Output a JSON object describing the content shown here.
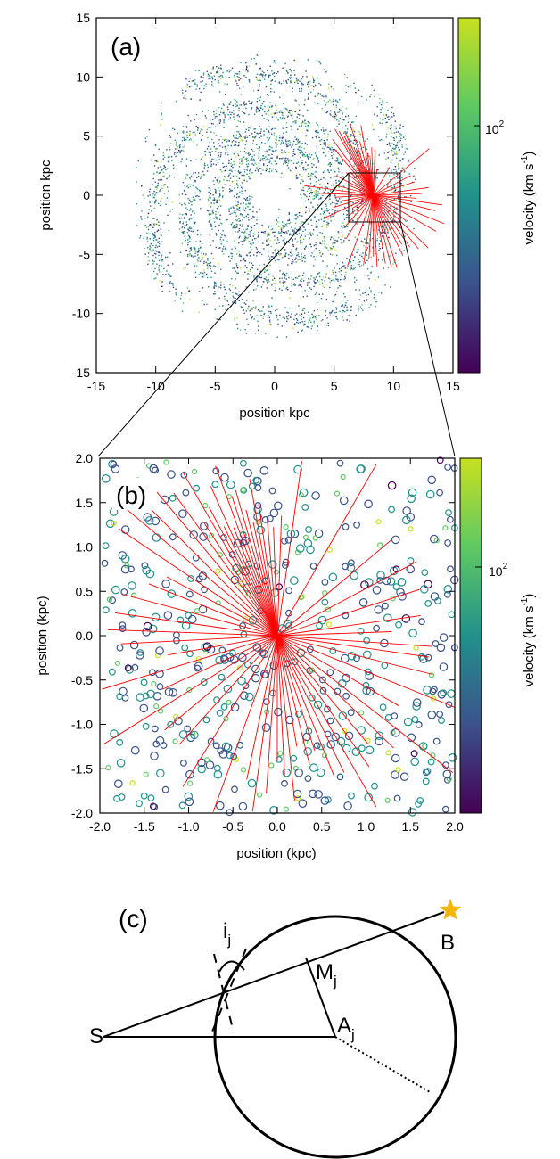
{
  "figure": {
    "panel_labels": [
      "(a)",
      "(b)",
      "(c)"
    ]
  },
  "chart_data": [
    {
      "type": "scatter",
      "panel": "(a)",
      "title": "",
      "xlabel": "position kpc",
      "ylabel": "position kpc",
      "xlim": [
        -15,
        15
      ],
      "ylim": [
        -15,
        15
      ],
      "x_ticks": [
        "-15",
        "-10",
        "-5",
        "0",
        "5",
        "10",
        "15"
      ],
      "y_ticks": [
        "-15",
        "-10",
        "-5",
        "0",
        "5",
        "10",
        "15"
      ],
      "colorbar": {
        "label": "velocity (km s-1)",
        "label_base": "velocity (km s",
        "label_sup": "-1",
        "label_tail": ")",
        "tick_base": "10",
        "tick_sup": "2",
        "colors": [
          "#440154",
          "#3b528b",
          "#21918c",
          "#5ec962",
          "#c8e020"
        ]
      },
      "description_points": "spiral-arm distribution of sources, radius ~2-12 kpc",
      "observer": {
        "x": 8.3,
        "y": 0
      },
      "zoom_box": {
        "x": [
          6.3,
          10.3
        ],
        "y": [
          -2,
          2
        ]
      },
      "spiral_points": [
        {
          "r": 3,
          "theta_deg": 0
        }
      ]
    },
    {
      "type": "scatter",
      "panel": "(b)",
      "title": "",
      "xlabel": "position (kpc)",
      "ylabel": "position (kpc)",
      "xlim": [
        -2,
        2
      ],
      "ylim": [
        -2,
        2
      ],
      "x_ticks": [
        "-2.0",
        "-1.5",
        "-1.0",
        "-0.5",
        "0.0",
        "0.5",
        "1.0",
        "1.5",
        "2.0"
      ],
      "y_ticks": [
        "-2.0",
        "-1.5",
        "-1.0",
        "-0.5",
        "0.0",
        "0.5",
        "1.0",
        "1.5",
        "2.0"
      ],
      "colorbar": {
        "label": "velocity (km s-1)",
        "label_base": "velocity (km s",
        "label_sup": "-1",
        "label_tail": ")",
        "tick_base": "10",
        "tick_sup": "2",
        "colors": [
          "#440154",
          "#3b528b",
          "#21918c",
          "#5ec962",
          "#c8e020"
        ]
      },
      "sightline_angles_deg": [
        98,
        100,
        102,
        104,
        106,
        108,
        110,
        112,
        114,
        116,
        118,
        120,
        123,
        126,
        130,
        135,
        140,
        146,
        152,
        158,
        165,
        172,
        178,
        183,
        190,
        197,
        205,
        212,
        220,
        228,
        238,
        250,
        258,
        262,
        266,
        270,
        273,
        276,
        280,
        284,
        288,
        292,
        296,
        300,
        305,
        310,
        316,
        322,
        330,
        338,
        346,
        352,
        356,
        2,
        8,
        18,
        28,
        40,
        60,
        82,
        88,
        92,
        95
      ]
    }
  ],
  "diagram": {
    "labels": {
      "S": "S",
      "B": "B",
      "M_base": "M",
      "M_sub": "j",
      "A_base": "A",
      "A_sub": "j",
      "i_base": "i",
      "i_sub": "j"
    },
    "star_color": "#f5b400"
  }
}
